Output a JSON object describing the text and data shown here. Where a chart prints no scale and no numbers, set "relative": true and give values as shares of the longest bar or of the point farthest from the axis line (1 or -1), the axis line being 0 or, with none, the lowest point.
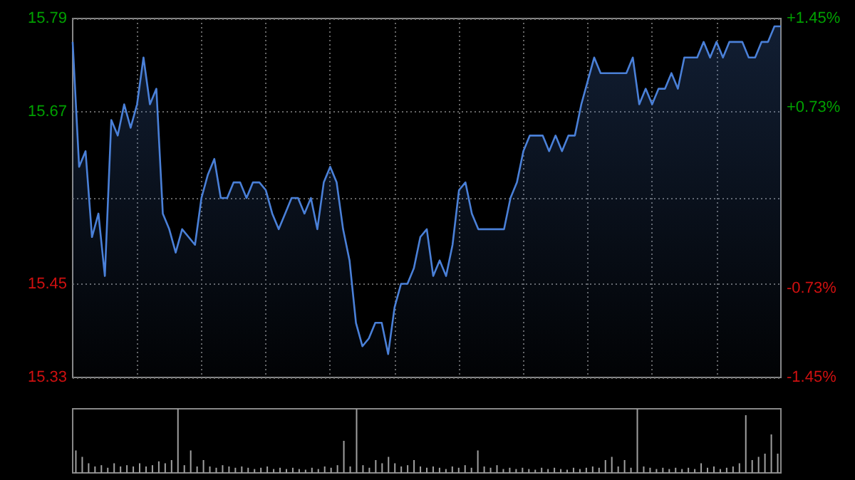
{
  "chart_data": [
    {
      "type": "area",
      "categories": [
        null,
        null,
        null,
        null,
        null,
        null,
        null,
        null,
        null,
        null,
        null,
        null,
        null,
        null,
        null,
        null,
        null,
        null,
        null,
        null,
        null,
        null,
        null,
        null,
        null,
        null,
        null,
        null,
        null,
        null,
        null,
        null,
        null,
        null,
        null,
        null,
        null,
        null,
        null,
        null,
        null,
        null,
        null,
        null,
        null,
        null,
        null,
        null,
        null,
        null,
        null,
        null,
        null,
        null,
        null,
        null,
        null,
        null,
        null,
        null,
        null,
        null,
        null,
        null,
        null,
        null,
        null,
        null,
        null,
        null,
        null,
        null,
        null,
        null,
        null,
        null,
        null,
        null,
        null,
        null,
        null,
        null,
        null,
        null,
        null,
        null,
        null,
        null,
        null,
        null,
        null,
        null,
        null,
        null,
        null,
        null,
        null,
        null,
        null,
        null,
        null,
        null,
        null,
        null,
        null,
        null,
        null,
        null,
        null,
        null,
        null
      ],
      "series": [
        {
          "color": "#4a80d8",
          "values": [
            15.76,
            15.6,
            15.62,
            15.51,
            15.54,
            15.46,
            15.66,
            15.64,
            15.68,
            15.65,
            15.68,
            15.74,
            15.68,
            15.7,
            15.54,
            15.52,
            15.49,
            15.52,
            15.51,
            15.5,
            15.56,
            15.59,
            15.61,
            15.56,
            15.56,
            15.58,
            15.58,
            15.56,
            15.58,
            15.58,
            15.57,
            15.54,
            15.52,
            15.54,
            15.56,
            15.56,
            15.54,
            15.56,
            15.52,
            15.58,
            15.6,
            15.58,
            15.52,
            15.48,
            15.4,
            15.37,
            15.38,
            15.4,
            15.4,
            15.36,
            15.42,
            15.45,
            15.45,
            15.47,
            15.51,
            15.52,
            15.46,
            15.48,
            15.46,
            15.5,
            15.57,
            15.58,
            15.54,
            15.52,
            15.52,
            15.52,
            15.52,
            15.52,
            15.56,
            15.58,
            15.62,
            15.64,
            15.64,
            15.64,
            15.62,
            15.64,
            15.62,
            15.64,
            15.64,
            15.68,
            15.71,
            15.74,
            15.72,
            15.72,
            15.72,
            15.72,
            15.72,
            15.74,
            15.68,
            15.7,
            15.68,
            15.7,
            15.7,
            15.72,
            15.7,
            15.74,
            15.74,
            15.74,
            15.76,
            15.74,
            15.76,
            15.74,
            15.76,
            15.76,
            15.76,
            15.74,
            15.74,
            15.76,
            15.76,
            15.78,
            15.78
          ]
        }
      ],
      "ylim": [
        15.33,
        15.79
      ],
      "yticks": [
        15.33,
        15.45,
        {
          "value": 15.56,
          "label": null
        },
        15.67,
        15.79
      ],
      "y2lim": [
        -1.45,
        1.45
      ],
      "y2ticks": [
        {
          "value": -1.45,
          "label": "-1.45%"
        },
        {
          "value": -0.73,
          "label": "-0.73%"
        },
        {
          "value": 0,
          "label": null
        },
        {
          "value": 0.73,
          "label": "+0.73%"
        },
        {
          "value": 1.45,
          "label": "+1.45%"
        }
      ],
      "grid": true,
      "line_style": "solid"
    },
    {
      "type": "bar",
      "relative": true,
      "categories": [
        null,
        null,
        null,
        null,
        null,
        null,
        null,
        null,
        null,
        null,
        null,
        null,
        null,
        null,
        null,
        null,
        null,
        null,
        null,
        null,
        null,
        null,
        null,
        null,
        null,
        null,
        null,
        null,
        null,
        null,
        null,
        null,
        null,
        null,
        null,
        null,
        null,
        null,
        null,
        null,
        null,
        null,
        null,
        null,
        null,
        null,
        null,
        null,
        null,
        null,
        null,
        null,
        null,
        null,
        null,
        null,
        null,
        null,
        null,
        null,
        null,
        null,
        null,
        null,
        null,
        null,
        null,
        null,
        null,
        null,
        null,
        null,
        null,
        null,
        null,
        null,
        null,
        null,
        null,
        null,
        null,
        null,
        null,
        null,
        null,
        null,
        null,
        null,
        null,
        null,
        null,
        null,
        null,
        null,
        null,
        null,
        null,
        null,
        null,
        null,
        null,
        null,
        null,
        null,
        null,
        null,
        null,
        null,
        null,
        null,
        null
      ],
      "series": [
        {
          "color": "#a0a0a0",
          "values": [
            0.35,
            0.25,
            0.15,
            0.1,
            0.12,
            0.08,
            0.15,
            0.1,
            0.12,
            0.1,
            0.15,
            0.1,
            0.12,
            0.18,
            0.15,
            0.2,
            1,
            0.12,
            0.35,
            0.1,
            0.2,
            0.1,
            0.08,
            0.12,
            0.1,
            0.08,
            0.1,
            0.08,
            0.06,
            0.08,
            0.1,
            0.06,
            0.08,
            0.06,
            0.08,
            0.06,
            0.05,
            0.08,
            0.06,
            0.1,
            0.08,
            0.12,
            0.5,
            0.1,
            1,
            0.12,
            0.08,
            0.2,
            0.15,
            0.25,
            0.15,
            0.1,
            0.12,
            0.2,
            0.1,
            0.08,
            0.1,
            0.08,
            0.06,
            0.1,
            0.08,
            0.12,
            0.08,
            0.35,
            0.1,
            0.08,
            0.12,
            0.06,
            0.08,
            0.06,
            0.08,
            0.06,
            0.05,
            0.08,
            0.06,
            0.08,
            0.06,
            0.05,
            0.08,
            0.06,
            0.08,
            0.1,
            0.08,
            0.2,
            0.25,
            0.1,
            0.2,
            0.08,
            1,
            0.1,
            0.08,
            0.06,
            0.08,
            0.06,
            0.08,
            0.06,
            0.08,
            0.06,
            0.15,
            0.08,
            0.1,
            0.06,
            0.08,
            0.1,
            0.15,
            0.9,
            0.2,
            0.25,
            0.3,
            0.6,
            0.3
          ]
        }
      ],
      "grid": false
    }
  ]
}
